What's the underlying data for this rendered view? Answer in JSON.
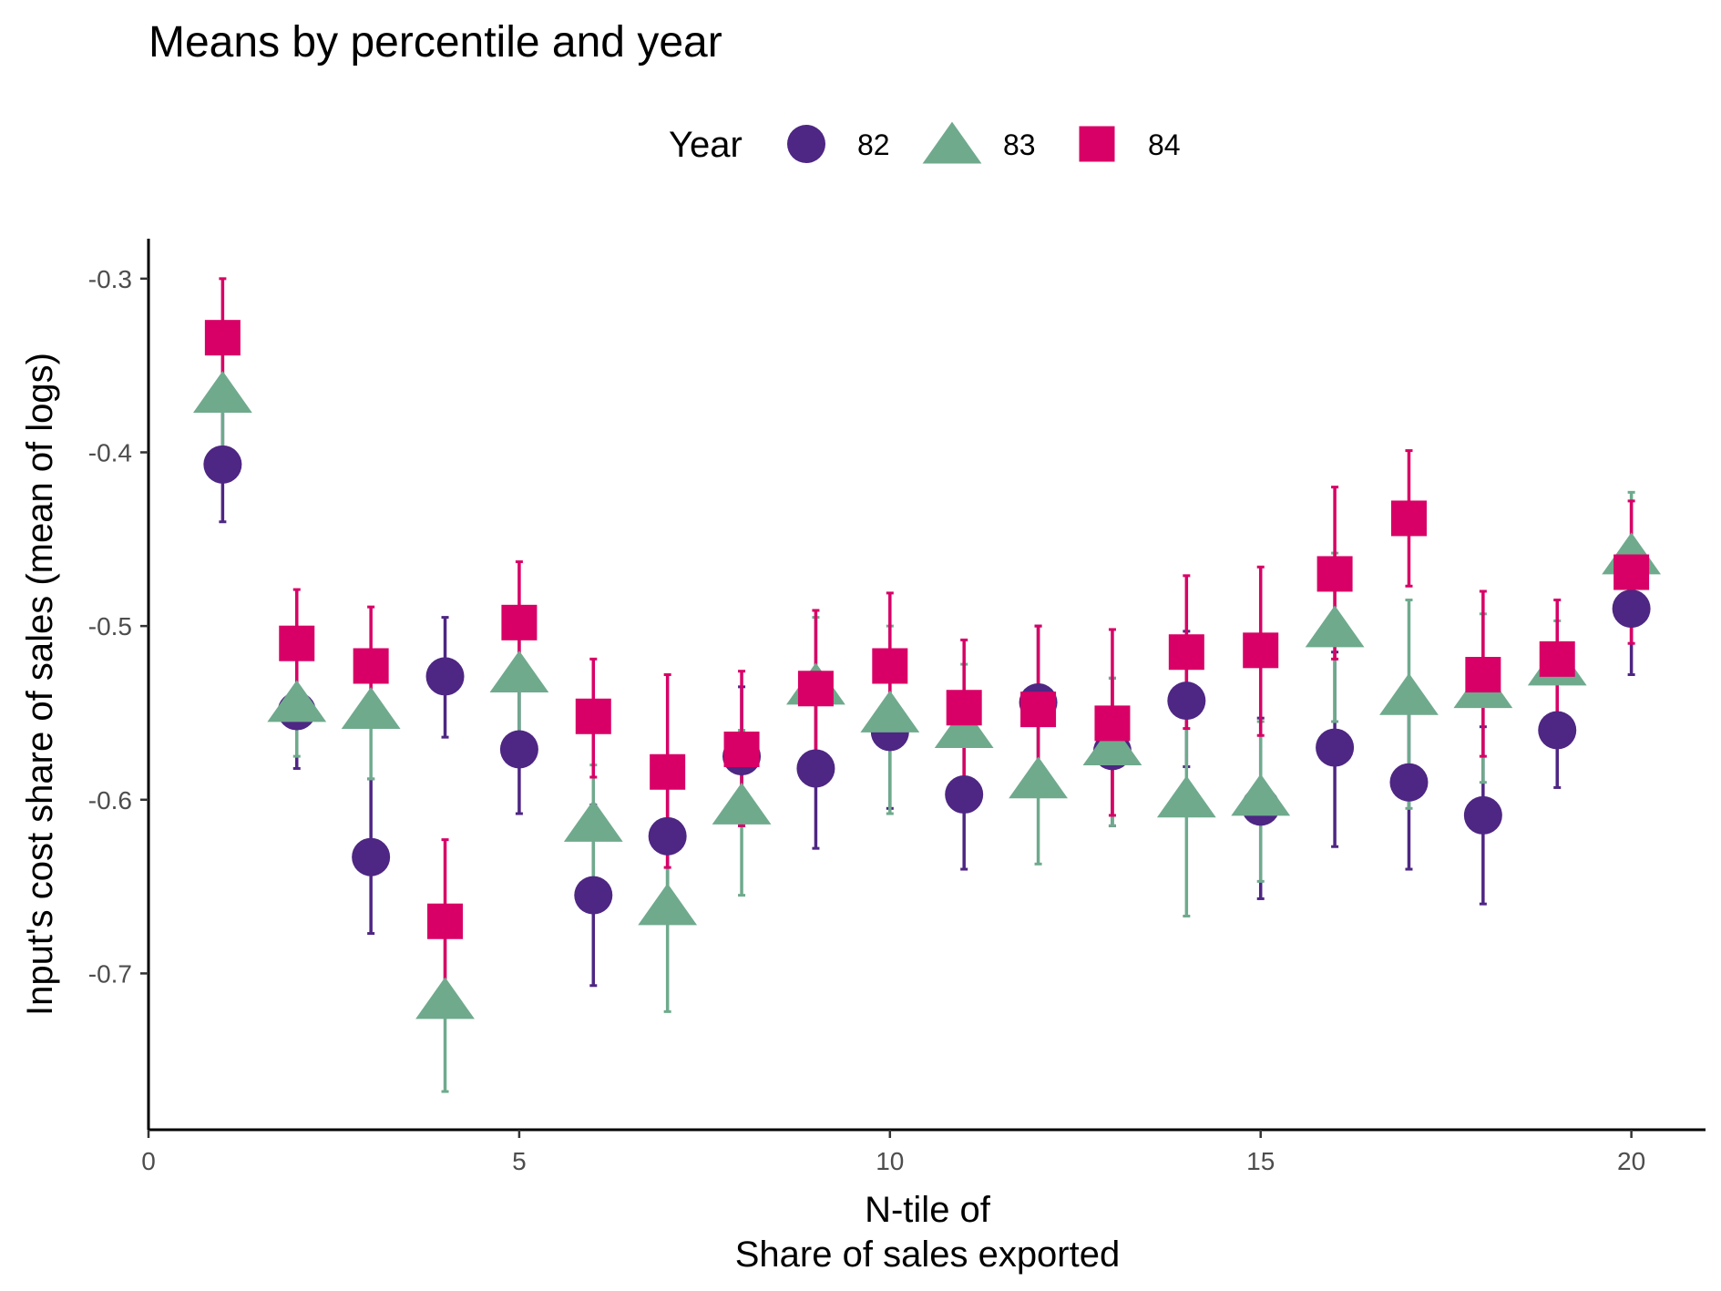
{
  "chart_data": {
    "type": "scatter",
    "title": "Means by percentile and year",
    "xlabel_lines": [
      "N-tile of",
      "Share of sales exported"
    ],
    "ylabel": "Input's cost share of sales (mean of logs)",
    "xlim": [
      0,
      21
    ],
    "ylim": [
      -0.79,
      -0.277
    ],
    "x_ticks": [
      0,
      5,
      10,
      15,
      20
    ],
    "y_ticks": [
      -0.3,
      -0.4,
      -0.5,
      -0.6,
      -0.7
    ],
    "grid": false,
    "error_bars": true,
    "legend": {
      "title": "Year",
      "position": "top"
    },
    "series": [
      {
        "name": "82",
        "marker": "circle",
        "color": "#4E2683",
        "x": [
          1,
          2,
          3,
          4,
          5,
          6,
          7,
          8,
          9,
          10,
          11,
          12,
          13,
          14,
          15,
          16,
          17,
          18,
          19,
          20
        ],
        "y": [
          -0.407,
          -0.549,
          -0.633,
          -0.529,
          -0.571,
          -0.655,
          -0.621,
          -0.575,
          -0.582,
          -0.561,
          -0.597,
          -0.544,
          -0.572,
          -0.543,
          -0.604,
          -0.57,
          -0.59,
          -0.609,
          -0.56,
          -0.49
        ],
        "low": [
          -0.44,
          -0.582,
          -0.677,
          -0.564,
          -0.608,
          -0.707,
          -0.67,
          -0.615,
          -0.628,
          -0.605,
          -0.64,
          -0.588,
          -0.615,
          -0.581,
          -0.657,
          -0.627,
          -0.64,
          -0.66,
          -0.593,
          -0.528
        ],
        "high": [
          -0.375,
          -0.517,
          -0.588,
          -0.495,
          -0.535,
          -0.603,
          -0.575,
          -0.535,
          -0.538,
          -0.517,
          -0.555,
          -0.5,
          -0.53,
          -0.503,
          -0.553,
          -0.515,
          -0.54,
          -0.558,
          -0.527,
          -0.452
        ]
      },
      {
        "name": "83",
        "marker": "triangle",
        "color": "#6FAA8D",
        "x": [
          1,
          2,
          3,
          4,
          5,
          6,
          7,
          8,
          9,
          10,
          11,
          12,
          13,
          14,
          15,
          16,
          17,
          18,
          19,
          20
        ],
        "y": [
          -0.368,
          -0.546,
          -0.55,
          -0.717,
          -0.529,
          -0.615,
          -0.663,
          -0.605,
          -0.536,
          -0.552,
          -0.561,
          -0.59,
          -0.571,
          -0.601,
          -0.6,
          -0.503,
          -0.542,
          -0.538,
          -0.525,
          -0.461
        ],
        "low": [
          -0.405,
          -0.575,
          -0.588,
          -0.768,
          -0.567,
          -0.658,
          -0.722,
          -0.655,
          -0.58,
          -0.608,
          -0.605,
          -0.637,
          -0.615,
          -0.667,
          -0.647,
          -0.555,
          -0.605,
          -0.59,
          -0.555,
          -0.5
        ],
        "high": [
          -0.335,
          -0.517,
          -0.52,
          -0.672,
          -0.495,
          -0.58,
          -0.615,
          -0.56,
          -0.495,
          -0.5,
          -0.522,
          -0.548,
          -0.53,
          -0.54,
          -0.555,
          -0.458,
          -0.485,
          -0.493,
          -0.497,
          -0.423
        ]
      },
      {
        "name": "84",
        "marker": "square",
        "color": "#D80066",
        "x": [
          1,
          2,
          3,
          4,
          5,
          6,
          7,
          8,
          9,
          10,
          11,
          12,
          13,
          14,
          15,
          16,
          17,
          18,
          19,
          20
        ],
        "y": [
          -0.334,
          -0.51,
          -0.523,
          -0.67,
          -0.498,
          -0.552,
          -0.584,
          -0.571,
          -0.536,
          -0.523,
          -0.547,
          -0.548,
          -0.556,
          -0.515,
          -0.514,
          -0.47,
          -0.438,
          -0.528,
          -0.519,
          -0.469
        ],
        "low": [
          -0.365,
          -0.541,
          -0.556,
          -0.713,
          -0.533,
          -0.587,
          -0.639,
          -0.615,
          -0.581,
          -0.563,
          -0.587,
          -0.596,
          -0.609,
          -0.559,
          -0.563,
          -0.519,
          -0.477,
          -0.575,
          -0.556,
          -0.51
        ],
        "high": [
          -0.3,
          -0.479,
          -0.489,
          -0.623,
          -0.463,
          -0.519,
          -0.528,
          -0.526,
          -0.491,
          -0.481,
          -0.508,
          -0.5,
          -0.502,
          -0.471,
          -0.466,
          -0.42,
          -0.399,
          -0.48,
          -0.485,
          -0.428
        ]
      }
    ]
  }
}
